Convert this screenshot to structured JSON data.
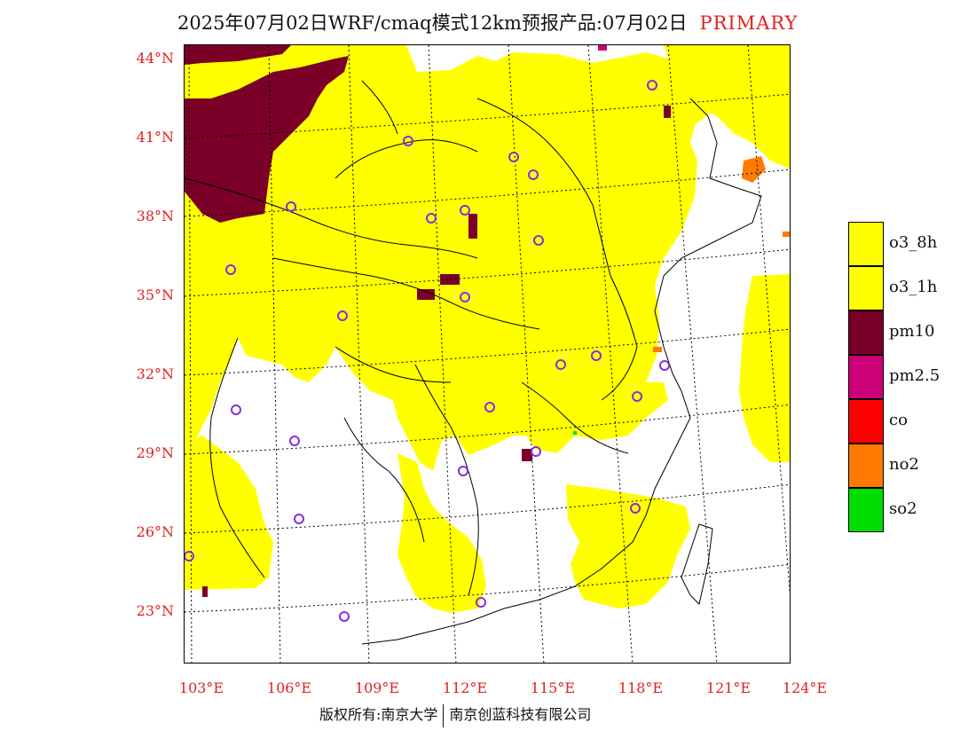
{
  "title": {
    "main": "2025年07月02日WRF/cmaq模式12km预报产品:07月02日",
    "tag": "PRIMARY"
  },
  "axes": {
    "lat_labels": [
      "44°N",
      "41°N",
      "38°N",
      "35°N",
      "32°N",
      "29°N",
      "26°N",
      "23°N"
    ],
    "lon_labels": [
      "103°E",
      "106°E",
      "109°E",
      "112°E",
      "115°E",
      "118°E",
      "121°E",
      "124°E"
    ]
  },
  "legend": [
    {
      "label": "o3_8h",
      "color": "#ffff00"
    },
    {
      "label": "o3_1h",
      "color": "#ffff00"
    },
    {
      "label": "pm10",
      "color": "#7a0028"
    },
    {
      "label": "pm2.5",
      "color": "#cc0077"
    },
    {
      "label": "co",
      "color": "#ff0000"
    },
    {
      "label": "no2",
      "color": "#ff7a00"
    },
    {
      "label": "so2",
      "color": "#00dd00"
    }
  ],
  "footer": {
    "left": "版权所有:南京大学",
    "right": "南京创蓝科技有限公司"
  },
  "colors": {
    "o3": "#ffff00",
    "pm10": "#7a0028",
    "pm25": "#cc0077",
    "no2": "#ff7a00",
    "so2": "#00dd00",
    "station_marker": "#8a2be2",
    "axis_label": "#e02020"
  }
}
